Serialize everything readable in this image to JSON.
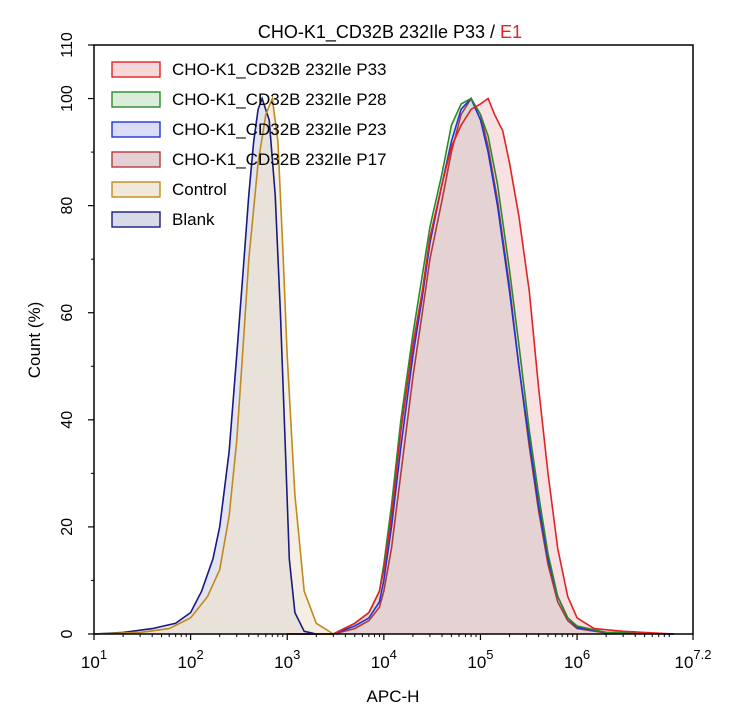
{
  "chart_data": {
    "type": "area",
    "title": "CHO-K1_CD32B 232Ile P33",
    "title_separator": " / ",
    "title_suffix": "E1",
    "xlabel": "APC-H",
    "ylabel": "Count  (%)",
    "x_scale": "log10",
    "xlim": [
      10,
      15848932
    ],
    "ylim": [
      0,
      110
    ],
    "grid": false,
    "legend_position": "top-left",
    "x_ticks": [
      {
        "value": 10,
        "base": "10",
        "exp": "1"
      },
      {
        "value": 100,
        "base": "10",
        "exp": "2"
      },
      {
        "value": 1000,
        "base": "10",
        "exp": "3"
      },
      {
        "value": 10000,
        "base": "10",
        "exp": "4"
      },
      {
        "value": 100000,
        "base": "10",
        "exp": "5"
      },
      {
        "value": 1000000,
        "base": "10",
        "exp": "6"
      },
      {
        "value": 15848932,
        "base": "10",
        "exp": "7.2"
      }
    ],
    "y_ticks": [
      "0",
      "20",
      "40",
      "60",
      "80",
      "100",
      "110"
    ],
    "y_tick_values": [
      0,
      20,
      40,
      60,
      80,
      100,
      110
    ],
    "series": [
      {
        "name": "CHO-K1_CD32B 232Ile P33",
        "color": "#e32222",
        "fill": "#f3c9cc",
        "points": [
          [
            1000,
            0
          ],
          [
            3000,
            0
          ],
          [
            5000,
            2
          ],
          [
            7000,
            4
          ],
          [
            9000,
            8
          ],
          [
            10000,
            12
          ],
          [
            12000,
            22
          ],
          [
            15000,
            38
          ],
          [
            20000,
            54
          ],
          [
            25000,
            64
          ],
          [
            30000,
            74
          ],
          [
            40000,
            84
          ],
          [
            50000,
            91
          ],
          [
            63000,
            95
          ],
          [
            80000,
            98
          ],
          [
            100000,
            99
          ],
          [
            120000,
            100
          ],
          [
            140000,
            97
          ],
          [
            170000,
            94
          ],
          [
            200000,
            88
          ],
          [
            250000,
            78
          ],
          [
            320000,
            64
          ],
          [
            400000,
            46
          ],
          [
            500000,
            30
          ],
          [
            630000,
            16
          ],
          [
            800000,
            7
          ],
          [
            1000000,
            3
          ],
          [
            1500000,
            1
          ],
          [
            3000000,
            0.5
          ],
          [
            10000000,
            0
          ]
        ]
      },
      {
        "name": "CHO-K1_CD32B 232Ile P28",
        "color": "#2a8a2a",
        "fill": "#cfe6cf",
        "points": [
          [
            1000,
            0
          ],
          [
            3000,
            0
          ],
          [
            5000,
            2
          ],
          [
            7000,
            4
          ],
          [
            9000,
            8
          ],
          [
            10000,
            13
          ],
          [
            12000,
            24
          ],
          [
            15000,
            40
          ],
          [
            20000,
            56
          ],
          [
            25000,
            67
          ],
          [
            30000,
            76
          ],
          [
            40000,
            86
          ],
          [
            50000,
            95
          ],
          [
            63000,
            99
          ],
          [
            80000,
            100
          ],
          [
            100000,
            97
          ],
          [
            120000,
            93
          ],
          [
            150000,
            84
          ],
          [
            200000,
            68
          ],
          [
            250000,
            54
          ],
          [
            320000,
            38
          ],
          [
            400000,
            26
          ],
          [
            500000,
            15
          ],
          [
            630000,
            7
          ],
          [
            800000,
            3
          ],
          [
            1000000,
            1.5
          ],
          [
            2000000,
            0.3
          ],
          [
            10000000,
            0
          ]
        ]
      },
      {
        "name": "CHO-K1_CD32B 232Ile P23",
        "color": "#2233dd",
        "fill": "#cdd2f2",
        "points": [
          [
            1000,
            0
          ],
          [
            3000,
            0
          ],
          [
            5000,
            1.5
          ],
          [
            7000,
            3
          ],
          [
            9000,
            6
          ],
          [
            10000,
            10
          ],
          [
            12000,
            20
          ],
          [
            15000,
            35
          ],
          [
            20000,
            52
          ],
          [
            25000,
            63
          ],
          [
            30000,
            73
          ],
          [
            40000,
            84
          ],
          [
            50000,
            92
          ],
          [
            63000,
            98
          ],
          [
            80000,
            100
          ],
          [
            100000,
            96
          ],
          [
            120000,
            90
          ],
          [
            150000,
            80
          ],
          [
            200000,
            64
          ],
          [
            250000,
            50
          ],
          [
            320000,
            36
          ],
          [
            400000,
            24
          ],
          [
            500000,
            14
          ],
          [
            630000,
            7
          ],
          [
            800000,
            3
          ],
          [
            1000000,
            1.2
          ],
          [
            2000000,
            0.3
          ],
          [
            10000000,
            0
          ]
        ]
      },
      {
        "name": "CHO-K1_CD32B 232Ile P17",
        "color": "#b23a3a",
        "fill": "#d8c0c6",
        "points": [
          [
            1000,
            0
          ],
          [
            3000,
            0
          ],
          [
            5000,
            1
          ],
          [
            7000,
            2.5
          ],
          [
            9000,
            5
          ],
          [
            10000,
            8
          ],
          [
            12000,
            16
          ],
          [
            15000,
            30
          ],
          [
            20000,
            48
          ],
          [
            25000,
            60
          ],
          [
            30000,
            70
          ],
          [
            40000,
            81
          ],
          [
            50000,
            90
          ],
          [
            63000,
            97
          ],
          [
            80000,
            100
          ],
          [
            100000,
            97
          ],
          [
            120000,
            91
          ],
          [
            150000,
            81
          ],
          [
            200000,
            65
          ],
          [
            250000,
            50
          ],
          [
            320000,
            35
          ],
          [
            400000,
            23
          ],
          [
            500000,
            13
          ],
          [
            630000,
            6
          ],
          [
            800000,
            2.5
          ],
          [
            1000000,
            1
          ],
          [
            2000000,
            0.2
          ],
          [
            10000000,
            0
          ]
        ]
      },
      {
        "name": "Control",
        "color": "#c08a1e",
        "fill": "#ece0cc",
        "points": [
          [
            10,
            0
          ],
          [
            30,
            0.3
          ],
          [
            60,
            1
          ],
          [
            100,
            3
          ],
          [
            150,
            7
          ],
          [
            200,
            12
          ],
          [
            250,
            22
          ],
          [
            300,
            36
          ],
          [
            350,
            54
          ],
          [
            400,
            70
          ],
          [
            500,
            88
          ],
          [
            600,
            97
          ],
          [
            700,
            100
          ],
          [
            800,
            92
          ],
          [
            900,
            72
          ],
          [
            1000,
            52
          ],
          [
            1200,
            26
          ],
          [
            1500,
            8
          ],
          [
            2000,
            2
          ],
          [
            3000,
            0
          ]
        ]
      },
      {
        "name": "Blank",
        "color": "#1a1a80",
        "fill": "#cccde0",
        "points": [
          [
            10,
            0
          ],
          [
            20,
            0.3
          ],
          [
            40,
            1
          ],
          [
            70,
            2
          ],
          [
            100,
            4
          ],
          [
            130,
            8
          ],
          [
            170,
            14
          ],
          [
            200,
            20
          ],
          [
            250,
            34
          ],
          [
            300,
            52
          ],
          [
            350,
            68
          ],
          [
            400,
            82
          ],
          [
            450,
            92
          ],
          [
            500,
            98
          ],
          [
            550,
            100
          ],
          [
            650,
            96
          ],
          [
            750,
            82
          ],
          [
            850,
            60
          ],
          [
            950,
            36
          ],
          [
            1050,
            14
          ],
          [
            1200,
            4
          ],
          [
            1500,
            0.5
          ],
          [
            2000,
            0
          ]
        ]
      }
    ]
  }
}
